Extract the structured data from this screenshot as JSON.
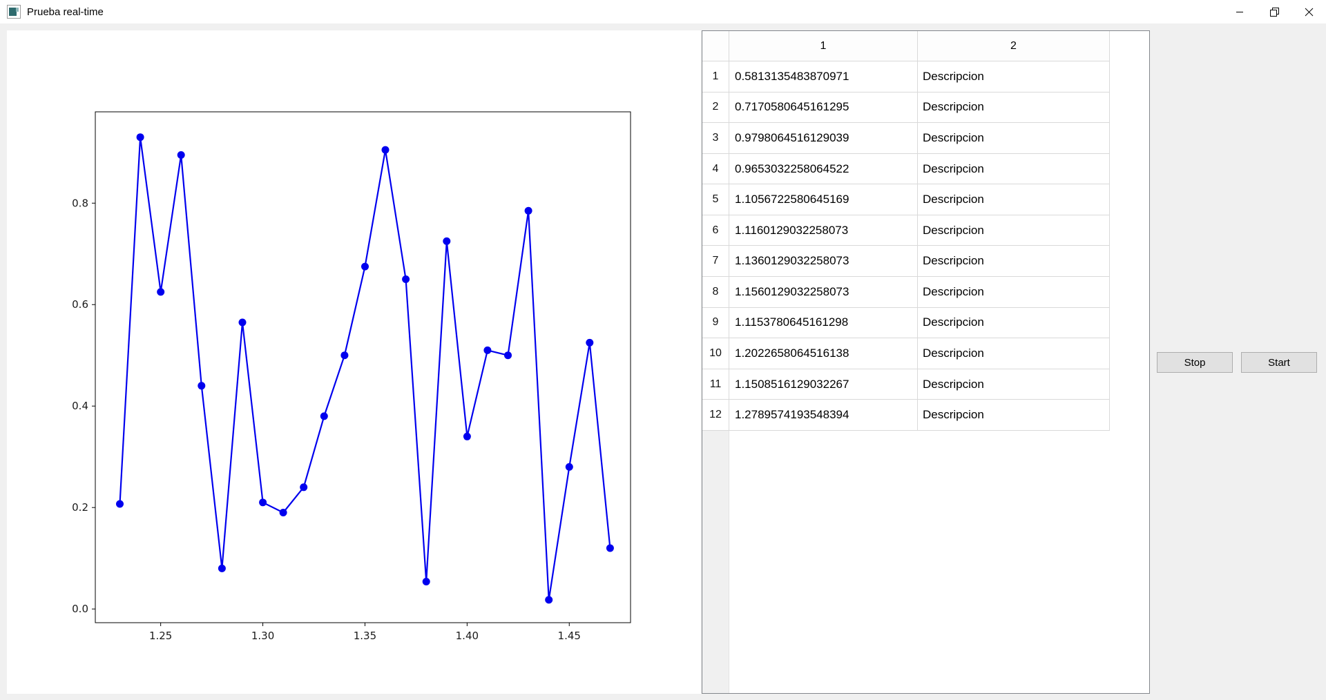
{
  "window": {
    "title": "Prueba real-time",
    "icons": {
      "app": "app-window-icon",
      "minimize": "minimize-icon",
      "maximize": "restore-icon",
      "close": "close-icon"
    }
  },
  "chart_data": {
    "type": "line",
    "title": "",
    "xlabel": "",
    "ylabel": "",
    "legend": null,
    "grid": false,
    "line_color": "#0000ee",
    "marker": "circle",
    "x": [
      1.23,
      1.24,
      1.25,
      1.26,
      1.27,
      1.28,
      1.29,
      1.3,
      1.31,
      1.32,
      1.33,
      1.34,
      1.35,
      1.36,
      1.37,
      1.38,
      1.39,
      1.4,
      1.41,
      1.42,
      1.43,
      1.44,
      1.45,
      1.46,
      1.47
    ],
    "y": [
      0.207,
      0.93,
      0.625,
      0.895,
      0.44,
      0.08,
      0.565,
      0.21,
      0.19,
      0.24,
      0.38,
      0.5,
      0.675,
      0.905,
      0.65,
      0.054,
      0.725,
      0.34,
      0.51,
      0.5,
      0.785,
      0.018,
      0.28,
      0.525,
      0.12
    ],
    "xlim": [
      1.218,
      1.48
    ],
    "ylim": [
      -0.027,
      0.98
    ],
    "xticks": [
      {
        "v": 1.25,
        "label": "1.25"
      },
      {
        "v": 1.3,
        "label": "1.30"
      },
      {
        "v": 1.35,
        "label": "1.35"
      },
      {
        "v": 1.4,
        "label": "1.40"
      },
      {
        "v": 1.45,
        "label": "1.45"
      }
    ],
    "yticks": [
      {
        "v": 0.0,
        "label": "0.0"
      },
      {
        "v": 0.2,
        "label": "0.2"
      },
      {
        "v": 0.4,
        "label": "0.4"
      },
      {
        "v": 0.6,
        "label": "0.6"
      },
      {
        "v": 0.8,
        "label": "0.8"
      }
    ]
  },
  "table": {
    "corner_label": "",
    "columns": [
      "1",
      "2"
    ],
    "rows": [
      {
        "n": "1",
        "value": "0.5813135483870971",
        "description": "Descripcion"
      },
      {
        "n": "2",
        "value": "0.7170580645161295",
        "description": "Descripcion"
      },
      {
        "n": "3",
        "value": "0.9798064516129039",
        "description": "Descripcion"
      },
      {
        "n": "4",
        "value": "0.9653032258064522",
        "description": "Descripcion"
      },
      {
        "n": "5",
        "value": "1.1056722580645169",
        "description": "Descripcion"
      },
      {
        "n": "6",
        "value": "1.1160129032258073",
        "description": "Descripcion"
      },
      {
        "n": "7",
        "value": "1.1360129032258073",
        "description": "Descripcion"
      },
      {
        "n": "8",
        "value": "1.1560129032258073",
        "description": "Descripcion"
      },
      {
        "n": "9",
        "value": "1.1153780645161298",
        "description": "Descripcion"
      },
      {
        "n": "10",
        "value": "1.2022658064516138",
        "description": "Descripcion"
      },
      {
        "n": "11",
        "value": "1.1508516129032267",
        "description": "Descripcion"
      },
      {
        "n": "12",
        "value": "1.2789574193548394",
        "description": "Descripcion"
      }
    ]
  },
  "buttons": {
    "stop": "Stop",
    "start": "Start"
  },
  "colors": {
    "window_bg": "#f0f0f0",
    "titlebar_bg": "#ffffff",
    "plot_line": "#0000ee",
    "grid_line": "#d9d9d9",
    "table_border": "#82868b",
    "button_bg": "#e1e1e1",
    "button_border": "#adadad"
  }
}
